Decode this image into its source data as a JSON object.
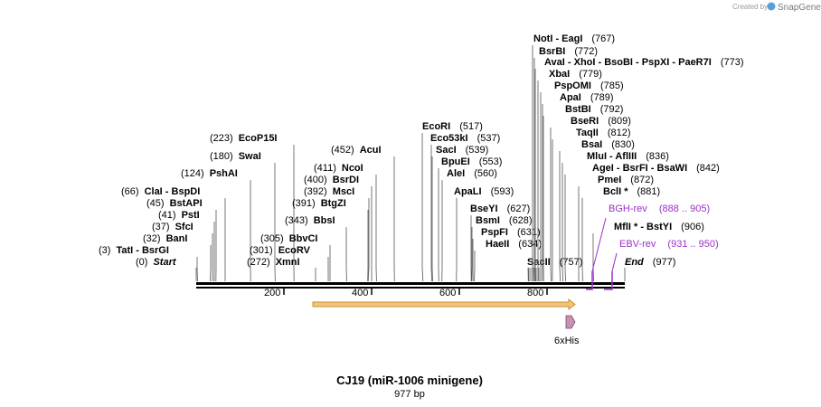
{
  "branding": {
    "created_by": "Created by",
    "app_name": "SnapGene"
  },
  "map": {
    "title": "CJ19 (miR-1006 minigene)",
    "length_label": "977 bp",
    "ruler_ticks": [
      "200",
      "400",
      "600",
      "800"
    ],
    "features": [
      {
        "name": "6xHis",
        "kind": "tag"
      },
      {
        "name": "",
        "kind": "orf-arrow"
      }
    ],
    "sites": [
      {
        "bp": 0,
        "pos": "(0)",
        "label": "Start",
        "italic": true
      },
      {
        "bp": 3,
        "pos": "(3)",
        "label": "TatI  -  BsrGI"
      },
      {
        "bp": 32,
        "pos": "(32)",
        "label": "BanI"
      },
      {
        "bp": 37,
        "pos": "(37)",
        "label": "SfcI"
      },
      {
        "bp": 41,
        "pos": "(41)",
        "label": "PstI"
      },
      {
        "bp": 45,
        "pos": "(45)",
        "label": "BstAPI"
      },
      {
        "bp": 66,
        "pos": "(66)",
        "label": "ClaI  -  BspDI"
      },
      {
        "bp": 124,
        "pos": "(124)",
        "label": "PshAI"
      },
      {
        "bp": 180,
        "pos": "(180)",
        "label": "SwaI"
      },
      {
        "bp": 223,
        "pos": "(223)",
        "label": "EcoP15I"
      },
      {
        "bp": 272,
        "pos": "(272)",
        "label": "XmnI"
      },
      {
        "bp": 301,
        "pos": "(301)",
        "label": "EcoRV"
      },
      {
        "bp": 305,
        "pos": "(305)",
        "label": "BbvCI"
      },
      {
        "bp": 343,
        "pos": "(343)",
        "label": "BbsI"
      },
      {
        "bp": 391,
        "pos": "(391)",
        "label": "BtgZI"
      },
      {
        "bp": 392,
        "pos": "(392)",
        "label": "MscI"
      },
      {
        "bp": 400,
        "pos": "(400)",
        "label": "BsrDI"
      },
      {
        "bp": 411,
        "pos": "(411)",
        "label": "NcoI"
      },
      {
        "bp": 452,
        "pos": "(452)",
        "label": "AcuI"
      },
      {
        "bp": 517,
        "pos": "(517)",
        "label": "EcoRI"
      },
      {
        "bp": 537,
        "pos": "(537)",
        "label": "Eco53kI"
      },
      {
        "bp": 539,
        "pos": "(539)",
        "label": "SacI"
      },
      {
        "bp": 553,
        "pos": "(553)",
        "label": "BpuEI"
      },
      {
        "bp": 560,
        "pos": "(560)",
        "label": "AleI"
      },
      {
        "bp": 593,
        "pos": "(593)",
        "label": "ApaLI"
      },
      {
        "bp": 627,
        "pos": "(627)",
        "label": "BseYI"
      },
      {
        "bp": 628,
        "pos": "(628)",
        "label": "BsmI"
      },
      {
        "bp": 631,
        "pos": "(631)",
        "label": "PspFI"
      },
      {
        "bp": 634,
        "pos": "(634)",
        "label": "HaeII"
      },
      {
        "bp": 757,
        "pos": "(757)",
        "label": "SacII"
      },
      {
        "bp": 767,
        "pos": "(767)",
        "label": "NotI  -  EagI"
      },
      {
        "bp": 772,
        "pos": "(772)",
        "label": "BsrBI"
      },
      {
        "bp": 773,
        "pos": "(773)",
        "label": "AvaI  -  XhoI  -  BsoBI  -  PspXI  -  PaeR7I"
      },
      {
        "bp": 779,
        "pos": "(779)",
        "label": "XbaI"
      },
      {
        "bp": 785,
        "pos": "(785)",
        "label": "PspOMI"
      },
      {
        "bp": 789,
        "pos": "(789)",
        "label": "ApaI"
      },
      {
        "bp": 792,
        "pos": "(792)",
        "label": "BstBI"
      },
      {
        "bp": 809,
        "pos": "(809)",
        "label": "BseRI"
      },
      {
        "bp": 812,
        "pos": "(812)",
        "label": "TaqII"
      },
      {
        "bp": 830,
        "pos": "(830)",
        "label": "BsaI"
      },
      {
        "bp": 836,
        "pos": "(836)",
        "label": "MluI  -  AflIII"
      },
      {
        "bp": 842,
        "pos": "(842)",
        "label": "AgeI  -  BsrFI  -  BsaWI"
      },
      {
        "bp": 872,
        "pos": "(872)",
        "label": "PmeI"
      },
      {
        "bp": 881,
        "pos": "(881)",
        "label": "BclI *"
      },
      {
        "bp": 906,
        "pos": "(906)",
        "label": "MflI *  -  BstYI"
      },
      {
        "bp": 977,
        "pos": "(977)",
        "label": "End",
        "italic": true
      }
    ],
    "primers": [
      {
        "name": "BGH-rev",
        "range": "(888 .. 905)",
        "color": "#9b30c8"
      },
      {
        "name": "EBV-rev",
        "range": "(931 .. 950)",
        "color": "#9b30c8"
      }
    ],
    "colors": {
      "orf": "#f3c37a",
      "orf_stroke": "#c8902f",
      "tag": "#c792b4",
      "primer": "#9b30c8"
    }
  }
}
